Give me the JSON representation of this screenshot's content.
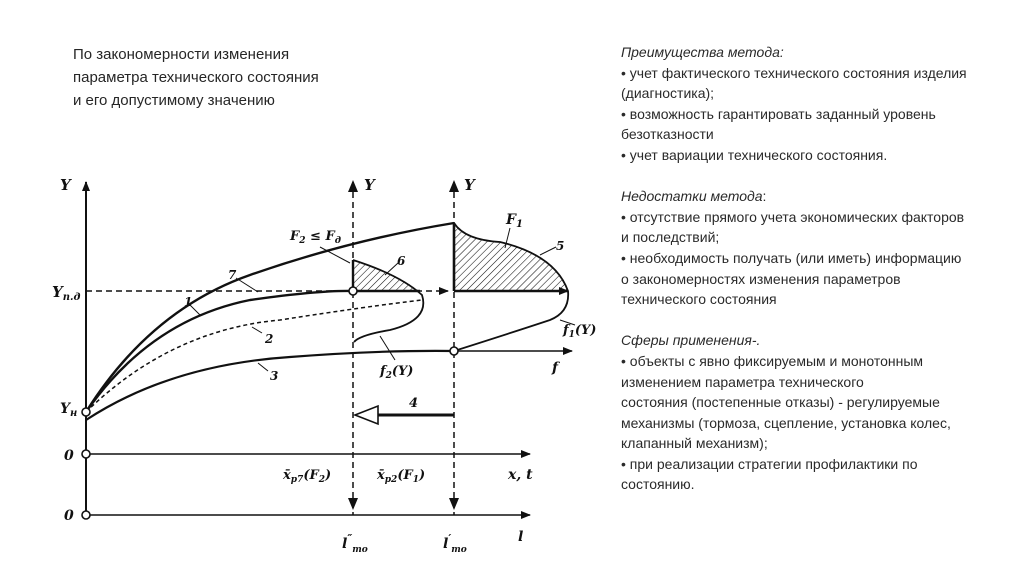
{
  "title": {
    "lines": [
      "По закономерности изменения",
      "параметра технического состояния",
      "и его допустимому значению"
    ]
  },
  "advantages": {
    "heading": "Преимущества метода:",
    "lines": [
      "• учет фактического технического состояния изделия",
      "(диагностика);",
      "• возможность гарантировать заданный уровень",
      "безотказности",
      "• учет вариации технического состояния."
    ]
  },
  "disadvantages": {
    "heading": "Недостатки метода",
    "heading_suffix": ":",
    "lines": [
      "• отсутствие прямого учета экономических факторов",
      "и последствий;",
      "• необходимость получать (или иметь) информацию",
      "о закономерностях изменения параметров",
      "технического состояния"
    ]
  },
  "applications": {
    "heading": "Сферы применения-.",
    "lines": [
      "• объекты с явно фиксируемым и монотонным",
      "изменением параметра технического",
      "состояния (постепенные отказы) - регулируемые",
      "механизмы (тормоза, сцепление, установка колес,",
      "клапанный механизм);",
      "• при реализации стратегии профилактики по",
      "состоянию."
    ]
  },
  "diagram": {
    "y_axis_left": "Y",
    "y_axis_mid": "Y",
    "y_axis_right": "Y",
    "y_pd": {
      "main": "Y",
      "sub": "п.д"
    },
    "y_n": {
      "main": "Y",
      "sub": "н"
    },
    "zero_1": "0",
    "zero_2": "0",
    "condition": {
      "a": "F",
      "a_sub": "2",
      "op": " ≤ ",
      "b": "F",
      "b_sub": "д"
    },
    "curve_labels": {
      "c1": "1",
      "c2": "2",
      "c3": "3",
      "c4": "4",
      "c5": "5",
      "c6": "6",
      "c7": "7"
    },
    "F1": {
      "main": "F",
      "sub": "1"
    },
    "f1Y": {
      "main": "f",
      "sub": "1",
      "rest": "(Y)"
    },
    "f2Y": {
      "main": "f",
      "sub": "2",
      "rest": "(Y)"
    },
    "f_axis": "f",
    "xp7": {
      "main": "x̄",
      "sub": "р7",
      "rest": "(F",
      "sub2": "2",
      "end": ")"
    },
    "xp2": {
      "main": "x̄",
      "sub": "р2",
      "rest": "(F",
      "sub2": "1",
      "end": ")"
    },
    "x_t_axis": "x, t",
    "l_axis": "l",
    "l_to_2": {
      "main": "l",
      "sup": "″",
      "sub": "то"
    },
    "l_to_1": {
      "main": "l",
      "sup": "′",
      "sub": "то"
    }
  }
}
